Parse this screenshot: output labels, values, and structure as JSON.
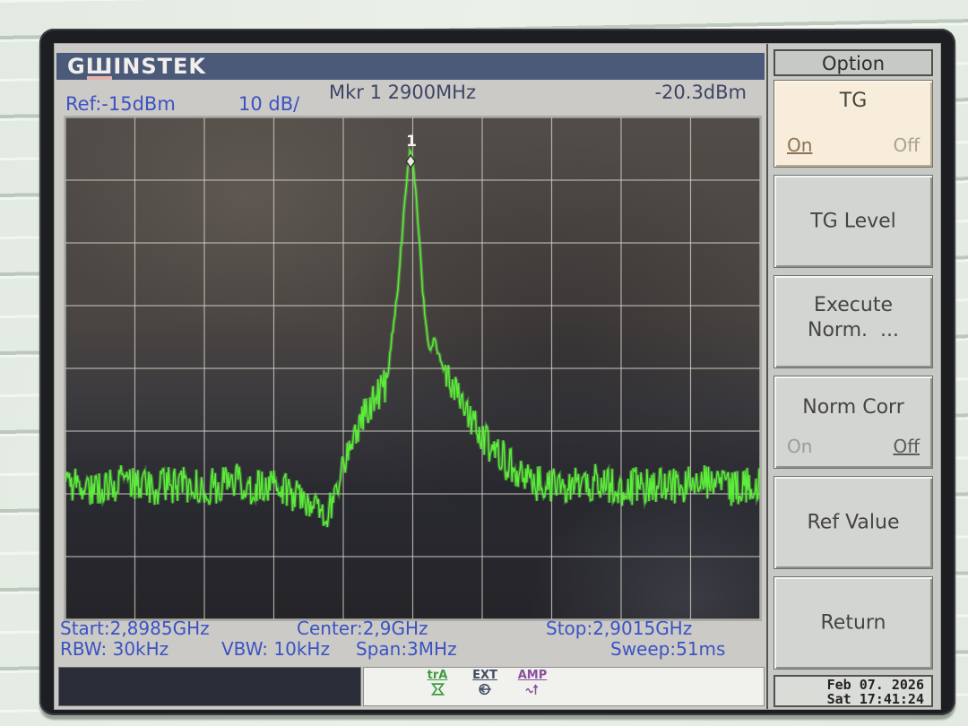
{
  "header": {
    "logo_g": "G",
    "logo_w": "Ш",
    "logo_rest": "INSTEK"
  },
  "readout": {
    "marker_label": "Mkr 1  2900MHz",
    "marker_level": "-20.3dBm",
    "ref": "Ref:-15dBm",
    "scale": "10 dB/"
  },
  "status": {
    "start": "Start:2,8985GHz",
    "center": "Center:2,9GHz",
    "stop": "Stop:2,9015GHz",
    "rbw": "RBW: 30kHz",
    "vbw": "VBW: 10kHz",
    "span": "Span:3MHz",
    "sweep": "Sweep:51ms"
  },
  "menu": {
    "title": "Option",
    "buttons": [
      {
        "label": "TG",
        "on": "On",
        "off": "Off",
        "selected": "On",
        "highlighted": true
      },
      {
        "label": "TG Level"
      },
      {
        "line1": "Execute",
        "line2": "Norm.  ..."
      },
      {
        "label": "Norm Corr",
        "on": "On",
        "off": "Off",
        "selected": "Off"
      },
      {
        "label": "Ref Value"
      },
      {
        "label": "Return"
      }
    ]
  },
  "footer": {
    "date": "Feb 07. 2026",
    "time": "Sat 17:41:24",
    "indicators": [
      {
        "label": "trA",
        "icon": "hourglass-icon"
      },
      {
        "label": "EXT",
        "icon": "ext-trigger-icon"
      },
      {
        "label": "AMP",
        "icon": "amp-wave-icon"
      }
    ]
  },
  "chart_data": {
    "type": "line",
    "title": "Spectrum trace",
    "x_axis": {
      "start_ghz": 2.8985,
      "center_ghz": 2.9,
      "stop_ghz": 2.9015,
      "span_mhz": 3,
      "divisions": 10
    },
    "y_axis": {
      "ref_dbm": -15,
      "db_per_div": 10,
      "divisions": 8,
      "bottom_dbm": -95
    },
    "marker": {
      "id": "1",
      "freq": "2900MHz",
      "level_dbm": -20.3,
      "x_frac": 0.497
    },
    "noise_floor_dbm": -74,
    "envelope_points": [
      [
        0.0,
        -73.5
      ],
      [
        0.04,
        -74
      ],
      [
        0.08,
        -73
      ],
      [
        0.12,
        -74
      ],
      [
        0.16,
        -73.5
      ],
      [
        0.2,
        -74
      ],
      [
        0.24,
        -73
      ],
      [
        0.28,
        -74
      ],
      [
        0.32,
        -74.5
      ],
      [
        0.345,
        -75.5
      ],
      [
        0.362,
        -77.5
      ],
      [
        0.376,
        -78.5
      ],
      [
        0.388,
        -75
      ],
      [
        0.4,
        -70
      ],
      [
        0.415,
        -66
      ],
      [
        0.43,
        -62
      ],
      [
        0.445,
        -60
      ],
      [
        0.455,
        -58.5
      ],
      [
        0.463,
        -57
      ],
      [
        0.47,
        -50
      ],
      [
        0.477,
        -44
      ],
      [
        0.483,
        -36
      ],
      [
        0.488,
        -29
      ],
      [
        0.492,
        -24
      ],
      [
        0.4955,
        -20.8
      ],
      [
        0.497,
        -20.3
      ],
      [
        0.4985,
        -21
      ],
      [
        0.502,
        -24
      ],
      [
        0.506,
        -29
      ],
      [
        0.51,
        -35
      ],
      [
        0.514,
        -42
      ],
      [
        0.519,
        -48
      ],
      [
        0.525,
        -53
      ],
      [
        0.531,
        -50
      ],
      [
        0.538,
        -53
      ],
      [
        0.547,
        -56
      ],
      [
        0.558,
        -58
      ],
      [
        0.572,
        -61
      ],
      [
        0.59,
        -64
      ],
      [
        0.61,
        -67
      ],
      [
        0.635,
        -70
      ],
      [
        0.66,
        -72.5
      ],
      [
        0.685,
        -73.5
      ],
      [
        0.72,
        -74
      ],
      [
        0.76,
        -73
      ],
      [
        0.8,
        -74
      ],
      [
        0.84,
        -73.5
      ],
      [
        0.88,
        -74
      ],
      [
        0.92,
        -73
      ],
      [
        0.96,
        -74
      ],
      [
        1.0,
        -73.5
      ]
    ],
    "samples": 700,
    "seed": 77,
    "noise_db": 3.0,
    "grid": true,
    "trace_color": "#5cee3a",
    "trace_glow": "rgba(110,245,75,0.33)",
    "grid_color": "rgba(206,203,193,0.8)"
  },
  "colors": {
    "wall": "#e2eae1",
    "bezel": "#1d1e21",
    "screen_bg": "#cbcac6",
    "header_bg": "#4c5a7a",
    "logo_text": "#f1efeb",
    "logo_accent": "#e5b3ab",
    "accent_blue": "#3b53c3",
    "marker_text": "#3e4565",
    "menu_bg": "#c6c9c6",
    "btn_bg": "#d3d5d2",
    "btn_hl_bg": "#f7edda",
    "btn_text": "#45453f",
    "unsel_text": "#9c9c96",
    "date_bg": "#dadcd8",
    "date_text": "#232323",
    "msg_bg": "#2b2e39",
    "io_bg": "#f1f1ed",
    "indicator_green": "#3f9b43",
    "indicator_navy": "#424d66",
    "indicator_purple": "#8a4e9e"
  }
}
